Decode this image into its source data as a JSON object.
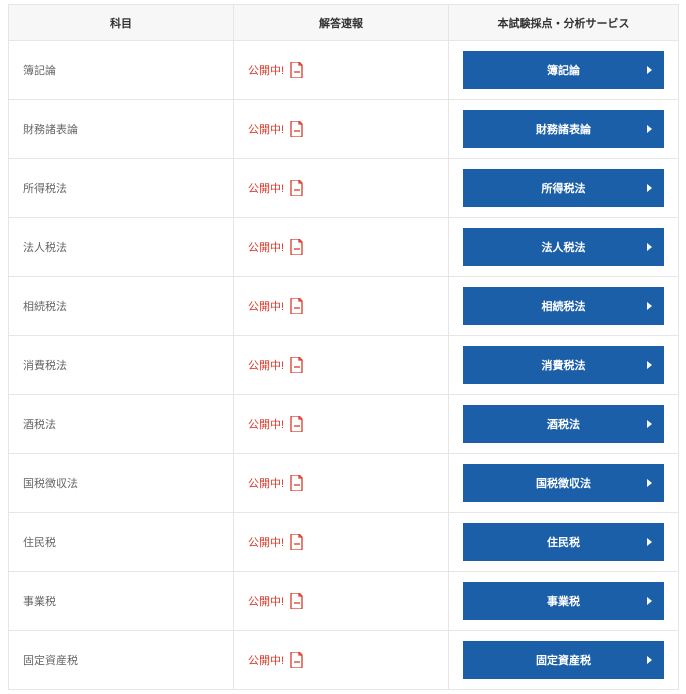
{
  "colors": {
    "header_bg": "#f7f7f7",
    "border": "#e6e6e6",
    "subject_text": "#666666",
    "status_text": "#d93a2b",
    "button_bg": "#1b5fa8",
    "button_text": "#ffffff",
    "header_text": "#333333"
  },
  "header": {
    "subject": "科目",
    "status": "解答速報",
    "service": "本試験採点・分析サービス"
  },
  "status_label": "公開中!",
  "rows": [
    {
      "subject": "簿記論",
      "button": "簿記論"
    },
    {
      "subject": "財務諸表論",
      "button": "財務諸表論"
    },
    {
      "subject": "所得税法",
      "button": "所得税法"
    },
    {
      "subject": "法人税法",
      "button": "法人税法"
    },
    {
      "subject": "相続税法",
      "button": "相続税法"
    },
    {
      "subject": "消費税法",
      "button": "消費税法"
    },
    {
      "subject": "酒税法",
      "button": "酒税法"
    },
    {
      "subject": "国税徴収法",
      "button": "国税徴収法"
    },
    {
      "subject": "住民税",
      "button": "住民税"
    },
    {
      "subject": "事業税",
      "button": "事業税"
    },
    {
      "subject": "固定資産税",
      "button": "固定資産税"
    }
  ]
}
